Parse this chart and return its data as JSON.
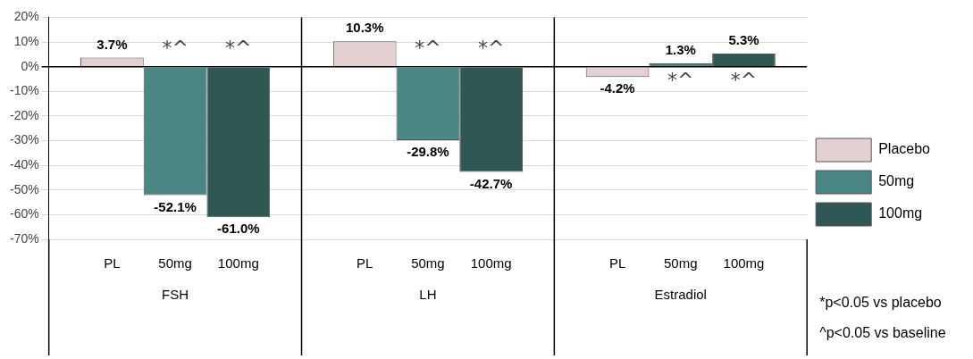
{
  "chart_data": {
    "type": "bar",
    "categories": [
      "FSH",
      "LH",
      "Estradiol"
    ],
    "series": [
      {
        "name": "Placebo",
        "color": "#e3d1d2",
        "values": [
          3.7,
          10.3,
          -4.2
        ],
        "value_labels": [
          "3.7%",
          "10.3%",
          "-4.2%"
        ]
      },
      {
        "name": "50mg",
        "color": "#4a8684",
        "values": [
          -52.1,
          -29.8,
          1.3
        ],
        "value_labels": [
          "-52.1%",
          "-29.8%",
          "1.3%"
        ]
      },
      {
        "name": "100mg",
        "color": "#2f5753",
        "values": [
          -61.0,
          -42.7,
          5.3
        ],
        "value_labels": [
          "-61.0%",
          "-42.7%",
          "5.3%"
        ]
      }
    ],
    "ylim": [
      -70,
      20
    ],
    "yticks": [
      {
        "value": -70,
        "label": "-70%"
      },
      {
        "value": -60,
        "label": "-60%"
      },
      {
        "value": -50,
        "label": "-50%"
      },
      {
        "value": -40,
        "label": "-40%"
      },
      {
        "value": -30,
        "label": "-30%"
      },
      {
        "value": -20,
        "label": "-20%"
      },
      {
        "value": -10,
        "label": "-10%"
      },
      {
        "value": 0,
        "label": "0%"
      },
      {
        "value": 10,
        "label": "10%"
      },
      {
        "value": 20,
        "label": "20%"
      }
    ],
    "grid": "y",
    "legend": "right",
    "annotations": [
      "PL",
      "50mg",
      "100mg",
      "*^",
      "*^",
      "*^",
      "*^",
      "*^",
      "*^",
      "*p<0.05 vs placebo",
      "^p<0.05 vs baseline"
    ]
  }
}
